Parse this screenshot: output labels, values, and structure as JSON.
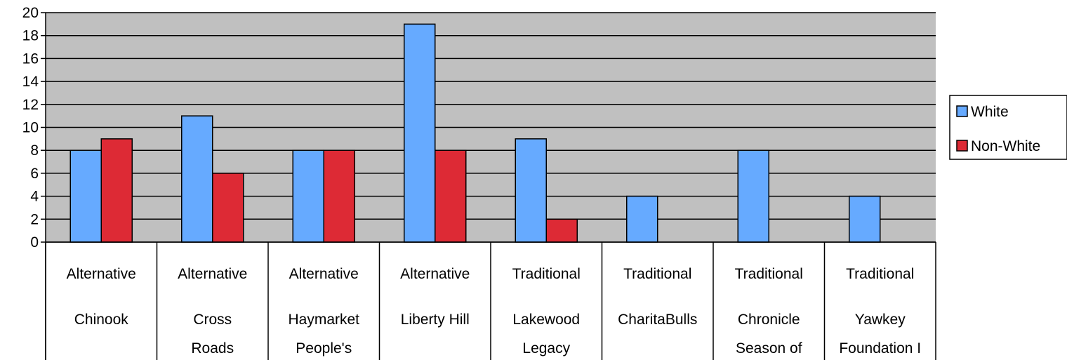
{
  "chart_data": {
    "type": "bar",
    "title": "",
    "xlabel": "",
    "ylabel": "",
    "ylim": [
      0,
      20
    ],
    "yticks": [
      0,
      2,
      4,
      6,
      8,
      10,
      12,
      14,
      16,
      18,
      20
    ],
    "grid": true,
    "legend_position": "right",
    "categories": [
      {
        "group": "Alternative",
        "name": [
          "Chinook"
        ]
      },
      {
        "group": "Alternative",
        "name": [
          "Cross",
          "Roads"
        ]
      },
      {
        "group": "Alternative",
        "name": [
          "Haymarket",
          "People's"
        ]
      },
      {
        "group": "Alternative",
        "name": [
          "Liberty Hill"
        ]
      },
      {
        "group": "Traditional",
        "name": [
          "Lakewood",
          "Legacy"
        ]
      },
      {
        "group": "Traditional",
        "name": [
          "CharitaBulls"
        ]
      },
      {
        "group": "Traditional",
        "name": [
          "Chronicle",
          "Season of"
        ]
      },
      {
        "group": "Traditional",
        "name": [
          "Yawkey",
          "Foundation I"
        ]
      }
    ],
    "series": [
      {
        "name": "White",
        "color": "#66aaff",
        "values": [
          8,
          11,
          8,
          19,
          9,
          4,
          8,
          4
        ]
      },
      {
        "name": "Non-White",
        "color": "#dd2a35",
        "values": [
          9,
          6,
          8,
          8,
          2,
          0,
          0,
          0
        ]
      }
    ],
    "colors": {
      "plot_background": "#c0c0c0",
      "gridline": "#000000",
      "bar_outline": "#000000"
    }
  }
}
